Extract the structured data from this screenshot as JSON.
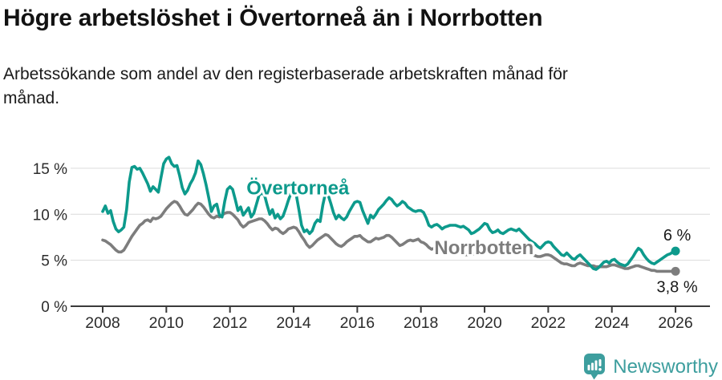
{
  "chart_data": {
    "type": "line",
    "title": "Högre arbetslöshet i Övertorneå än i Norrbotten",
    "subtitle": "Arbetssökande som andel av den registerbaserade arbetskraften månad för\nmånad.",
    "unit": "%",
    "grid": "horizontal-only",
    "legend": "inline-series-labels",
    "axis_color": "#3a3a3a",
    "grid_color": "#dcdcdc",
    "text_color": "#2b2b2b",
    "label_color": "#1a1a1a",
    "x": {
      "start_year": 2008,
      "end_year": 2026,
      "step_months": 1,
      "tick_years": [
        2008,
        2010,
        2012,
        2014,
        2016,
        2018,
        2020,
        2022,
        2024,
        2026
      ]
    },
    "y": {
      "ticks": [
        0,
        5,
        10,
        15
      ],
      "tick_labels": [
        "0 %",
        "5 %",
        "10 %",
        "15 %"
      ],
      "range": [
        0,
        17.5
      ]
    },
    "series": [
      {
        "name": "Övertorneå",
        "color": "#0d9a8c",
        "end_label": "6 %",
        "end_label_position": "above",
        "label_anchor": {
          "year": 2012.52,
          "value": 12.15
        },
        "values": [
          10.3,
          10.9,
          10.1,
          10.4,
          9.2,
          8.4,
          8.1,
          8.3,
          8.6,
          10.5,
          13.5,
          15.1,
          15.2,
          14.9,
          15.0,
          14.5,
          13.9,
          13.3,
          12.5,
          13.0,
          12.7,
          12.4,
          14.0,
          15.5,
          16.0,
          16.2,
          15.5,
          15.2,
          15.3,
          14.2,
          12.9,
          12.2,
          12.6,
          13.3,
          13.8,
          14.5,
          15.8,
          15.4,
          14.4,
          13.2,
          11.8,
          10.3,
          10.9,
          11.1,
          9.9,
          9.7,
          11.4,
          12.7,
          13.0,
          12.7,
          11.6,
          10.4,
          10.8,
          9.9,
          10.3,
          10.7,
          9.7,
          10.1,
          11.1,
          12.1,
          12.3,
          12.1,
          11.0,
          10.0,
          10.5,
          9.6,
          10.0,
          9.5,
          9.8,
          10.6,
          11.5,
          12.3,
          12.4,
          12.1,
          10.5,
          8.8,
          8.1,
          8.3,
          7.9,
          8.2,
          9.0,
          9.4,
          9.2,
          11.0,
          12.3,
          12.1,
          11.2,
          10.2,
          9.5,
          9.9,
          9.6,
          9.4,
          9.7,
          10.3,
          10.8,
          11.3,
          11.4,
          11.3,
          10.4,
          9.7,
          9.0,
          9.9,
          9.6,
          10.0,
          10.5,
          10.8,
          11.1,
          11.5,
          11.8,
          11.6,
          11.2,
          10.9,
          11.1,
          11.4,
          11.2,
          10.8,
          10.6,
          10.4,
          10.3,
          10.4,
          10.4,
          10.2,
          9.6,
          8.8,
          8.6,
          8.8,
          8.9,
          8.7,
          8.4,
          8.6,
          8.7,
          8.8,
          8.8,
          8.8,
          8.7,
          8.6,
          8.7,
          8.5,
          8.3,
          7.9,
          8.0,
          8.2,
          8.4,
          8.7,
          9.0,
          8.9,
          8.3,
          8.0,
          8.1,
          8.3,
          8.0,
          7.9,
          8.1,
          8.3,
          8.4,
          8.3,
          8.2,
          8.4,
          8.1,
          7.8,
          7.5,
          7.2,
          7.0,
          6.8,
          6.5,
          6.3,
          6.6,
          6.9,
          7.0,
          6.9,
          6.5,
          6.2,
          5.9,
          5.6,
          5.5,
          5.8,
          5.5,
          5.2,
          5.1,
          5.4,
          5.6,
          5.3,
          5.0,
          4.7,
          4.4,
          4.1,
          4.0,
          4.2,
          4.5,
          4.8,
          4.9,
          4.7,
          5.0,
          5.1,
          4.8,
          4.6,
          4.5,
          4.4,
          4.6,
          5.0,
          5.4,
          5.9,
          6.3,
          6.1,
          5.6,
          5.2,
          4.9,
          4.7,
          4.6,
          4.8,
          5.0,
          5.2,
          5.4,
          5.6,
          5.7,
          5.9,
          6.0
        ]
      },
      {
        "name": "Norrbotten",
        "color": "#7d7d7d",
        "end_label": "3,8 %",
        "end_label_position": "below",
        "label_anchor": {
          "year": 2018.42,
          "value": 5.65
        },
        "values": [
          7.2,
          7.1,
          6.9,
          6.7,
          6.4,
          6.1,
          5.9,
          5.9,
          6.1,
          6.6,
          7.1,
          7.6,
          8.0,
          8.4,
          8.8,
          9.0,
          9.3,
          9.4,
          9.2,
          9.6,
          9.5,
          9.6,
          9.8,
          10.2,
          10.6,
          10.9,
          11.2,
          11.4,
          11.3,
          10.9,
          10.4,
          10.0,
          9.9,
          10.2,
          10.5,
          10.9,
          11.2,
          11.1,
          10.8,
          10.4,
          10.0,
          9.7,
          9.6,
          9.8,
          9.7,
          9.9,
          10.1,
          10.2,
          10.2,
          10.0,
          9.7,
          9.4,
          8.9,
          8.6,
          8.8,
          9.1,
          9.2,
          9.3,
          9.4,
          9.5,
          9.5,
          9.3,
          9.0,
          8.6,
          8.3,
          8.5,
          8.4,
          8.1,
          7.9,
          8.1,
          8.4,
          8.5,
          8.6,
          8.5,
          8.1,
          7.6,
          7.2,
          6.7,
          6.4,
          6.6,
          6.9,
          7.2,
          7.4,
          7.6,
          7.8,
          7.7,
          7.4,
          7.1,
          6.8,
          6.6,
          6.5,
          6.7,
          7.0,
          7.2,
          7.4,
          7.6,
          7.6,
          7.7,
          7.4,
          7.2,
          7.0,
          7.0,
          7.2,
          7.4,
          7.3,
          7.4,
          7.5,
          7.7,
          7.7,
          7.5,
          7.2,
          6.9,
          6.6,
          6.7,
          6.9,
          7.1,
          7.2,
          7.1,
          7.2,
          7.3,
          7.0,
          6.9,
          6.7,
          6.4,
          6.2,
          6.3,
          6.5,
          6.5,
          6.3,
          6.1,
          5.9,
          6.0,
          6.0,
          5.9,
          5.8,
          5.7,
          5.6,
          5.6,
          5.6,
          5.6,
          5.7,
          5.7,
          5.8,
          5.9,
          6.0,
          6.1,
          6.2,
          6.4,
          6.6,
          6.7,
          6.7,
          6.6,
          6.5,
          6.4,
          6.3,
          6.2,
          6.2,
          6.1,
          6.0,
          5.9,
          5.8,
          5.7,
          5.6,
          5.5,
          5.4,
          5.4,
          5.5,
          5.6,
          5.6,
          5.5,
          5.3,
          5.1,
          4.9,
          4.7,
          4.6,
          4.6,
          4.5,
          4.4,
          4.4,
          4.6,
          4.7,
          4.6,
          4.5,
          4.4,
          4.4,
          4.4,
          4.3,
          4.3,
          4.3,
          4.3,
          4.3,
          4.4,
          4.5,
          4.5,
          4.4,
          4.3,
          4.2,
          4.1,
          4.1,
          4.2,
          4.3,
          4.4,
          4.4,
          4.3,
          4.2,
          4.1,
          4.0,
          3.9,
          3.9,
          3.8,
          3.8,
          3.8,
          3.8,
          3.8,
          3.8,
          3.8,
          3.8
        ]
      }
    ]
  },
  "footer": {
    "brand": "Newsworthy",
    "brand_color": "#3d9e9e",
    "icon": "bar-chart-speech-bubble-icon"
  }
}
